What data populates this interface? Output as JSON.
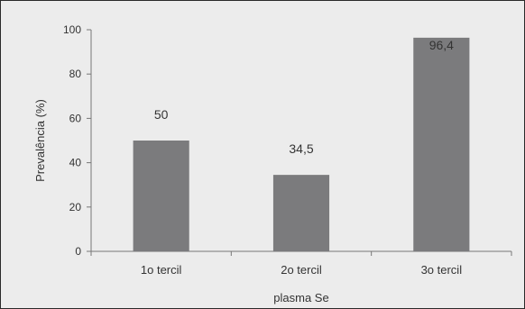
{
  "chart_data": {
    "type": "bar",
    "categories": [
      "1o tercil",
      "2o tercil",
      "3o tercil"
    ],
    "values": [
      50,
      34.5,
      96.4
    ],
    "value_labels": [
      "50",
      "34,5",
      "96,4"
    ],
    "title": "",
    "xlabel": "plasma Se",
    "ylabel": "Prevalência (%)",
    "ylim": [
      0,
      100
    ],
    "yticks": [
      0,
      20,
      40,
      60,
      80,
      100
    ],
    "grid": false,
    "bar_color": "#7b7b7d"
  }
}
